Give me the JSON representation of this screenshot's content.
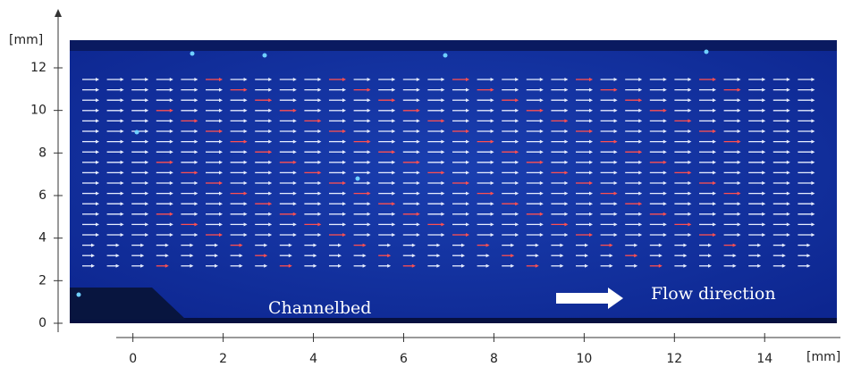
{
  "chart_data": {
    "type": "image",
    "xlim": [
      -1.4,
      15.6
    ],
    "xticks": [
      0,
      2,
      4,
      6,
      8,
      10,
      12,
      14
    ],
    "ylim": [
      0,
      13.3
    ],
    "yticks": [
      0,
      2,
      4,
      6,
      8,
      10,
      12
    ],
    "x_unit": "[mm]",
    "y_unit": "[mm]",
    "annotations": [
      "Channelbed",
      "Flow direction"
    ]
  }
}
